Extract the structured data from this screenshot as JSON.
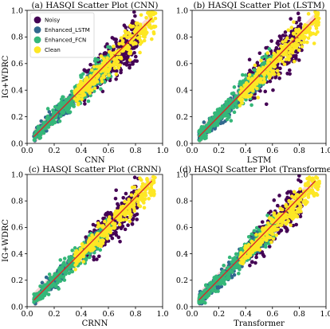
{
  "chart_data": [
    {
      "type": "scatter",
      "title": "(a) HASQI Scatter Plot (CNN)",
      "xlabel": "CNN",
      "ylabel": "IG+WDRC",
      "xlim": [
        0.0,
        1.0
      ],
      "ylim": [
        0.0,
        1.0
      ],
      "xticks": [
        "0.0",
        "0.2",
        "0.4",
        "0.6",
        "0.8",
        "1.0"
      ],
      "yticks": [
        "0.0",
        "0.2",
        "0.4",
        "0.6",
        "0.8",
        "1.0"
      ],
      "legend": {
        "placement": "top-left",
        "entries": [
          "Noisy",
          "Enhanced_LSTM",
          "Enhanced_FCN",
          "Clean"
        ]
      },
      "series": [
        {
          "name": "Noisy",
          "color": "#440154",
          "range": [
            0.42,
            0.82
          ],
          "spread": 0.06
        },
        {
          "name": "Enhanced_LSTM",
          "color": "#31688e",
          "range": [
            0.05,
            0.55
          ],
          "spread": 0.03
        },
        {
          "name": "Enhanced_FCN",
          "color": "#35b779",
          "range": [
            0.05,
            0.62
          ],
          "spread": 0.045
        },
        {
          "name": "Clean",
          "color": "#fde725",
          "range": [
            0.35,
            0.95
          ],
          "spread": 0.04
        }
      ],
      "fit_line": {
        "color": "#d62728",
        "x": [
          0.05,
          0.92
        ],
        "y": [
          0.05,
          0.94
        ]
      }
    },
    {
      "type": "scatter",
      "title": "(b) HASQI Scatter Plot (LSTM)",
      "xlabel": "LSTM",
      "ylabel": "",
      "xlim": [
        0.0,
        1.0
      ],
      "ylim": [
        0.0,
        1.0
      ],
      "xticks": [
        "0.0",
        "0.2",
        "0.4",
        "0.6",
        "0.8",
        "1.0"
      ],
      "yticks": [
        "0.0",
        "0.2",
        "0.4",
        "0.6",
        "0.8",
        "1.0"
      ],
      "series": [
        {
          "name": "Noisy",
          "color": "#440154",
          "range": [
            0.42,
            0.82
          ],
          "spread": 0.06
        },
        {
          "name": "Enhanced_LSTM",
          "color": "#31688e",
          "range": [
            0.05,
            0.55
          ],
          "spread": 0.03
        },
        {
          "name": "Enhanced_FCN",
          "color": "#35b779",
          "range": [
            0.05,
            0.62
          ],
          "spread": 0.045
        },
        {
          "name": "Clean",
          "color": "#fde725",
          "range": [
            0.35,
            0.95
          ],
          "spread": 0.04
        }
      ],
      "fit_line": {
        "color": "#d62728",
        "x": [
          0.05,
          0.92
        ],
        "y": [
          0.05,
          0.94
        ]
      }
    },
    {
      "type": "scatter",
      "title": "(c) HASQI Scatter Plot (CRNN)",
      "xlabel": "CRNN",
      "ylabel": "IG+WDRC",
      "xlim": [
        0.0,
        1.0
      ],
      "ylim": [
        0.0,
        1.0
      ],
      "xticks": [
        "0.0",
        "0.2",
        "0.4",
        "0.6",
        "0.8",
        "1.0"
      ],
      "yticks": [
        "0.0",
        "0.2",
        "0.4",
        "0.6",
        "0.8",
        "1.0"
      ],
      "series": [
        {
          "name": "Noisy",
          "color": "#440154",
          "range": [
            0.42,
            0.82
          ],
          "spread": 0.05
        },
        {
          "name": "Enhanced_LSTM",
          "color": "#31688e",
          "range": [
            0.05,
            0.55
          ],
          "spread": 0.03
        },
        {
          "name": "Enhanced_FCN",
          "color": "#35b779",
          "range": [
            0.05,
            0.62
          ],
          "spread": 0.04
        },
        {
          "name": "Clean",
          "color": "#fde725",
          "range": [
            0.35,
            0.95
          ],
          "spread": 0.035
        }
      ],
      "fit_line": {
        "color": "#d62728",
        "x": [
          0.05,
          0.92
        ],
        "y": [
          0.05,
          0.95
        ]
      }
    },
    {
      "type": "scatter",
      "title": "(d) HASQI Scatter Plot (Transformer)",
      "xlabel": "Transformer",
      "ylabel": "",
      "xlim": [
        0.0,
        1.0
      ],
      "ylim": [
        0.0,
        1.0
      ],
      "xticks": [
        "0.0",
        "0.2",
        "0.4",
        "0.6",
        "0.8",
        "1.0"
      ],
      "yticks": [
        "0.0",
        "0.2",
        "0.4",
        "0.6",
        "0.8",
        "1.0"
      ],
      "series": [
        {
          "name": "Noisy",
          "color": "#440154",
          "range": [
            0.42,
            0.82
          ],
          "spread": 0.05
        },
        {
          "name": "Enhanced_LSTM",
          "color": "#31688e",
          "range": [
            0.05,
            0.55
          ],
          "spread": 0.03
        },
        {
          "name": "Enhanced_FCN",
          "color": "#35b779",
          "range": [
            0.05,
            0.62
          ],
          "spread": 0.04
        },
        {
          "name": "Clean",
          "color": "#fde725",
          "range": [
            0.35,
            0.95
          ],
          "spread": 0.035
        }
      ],
      "fit_line": {
        "color": "#d62728",
        "x": [
          0.05,
          0.92
        ],
        "y": [
          0.05,
          0.95
        ]
      }
    }
  ]
}
